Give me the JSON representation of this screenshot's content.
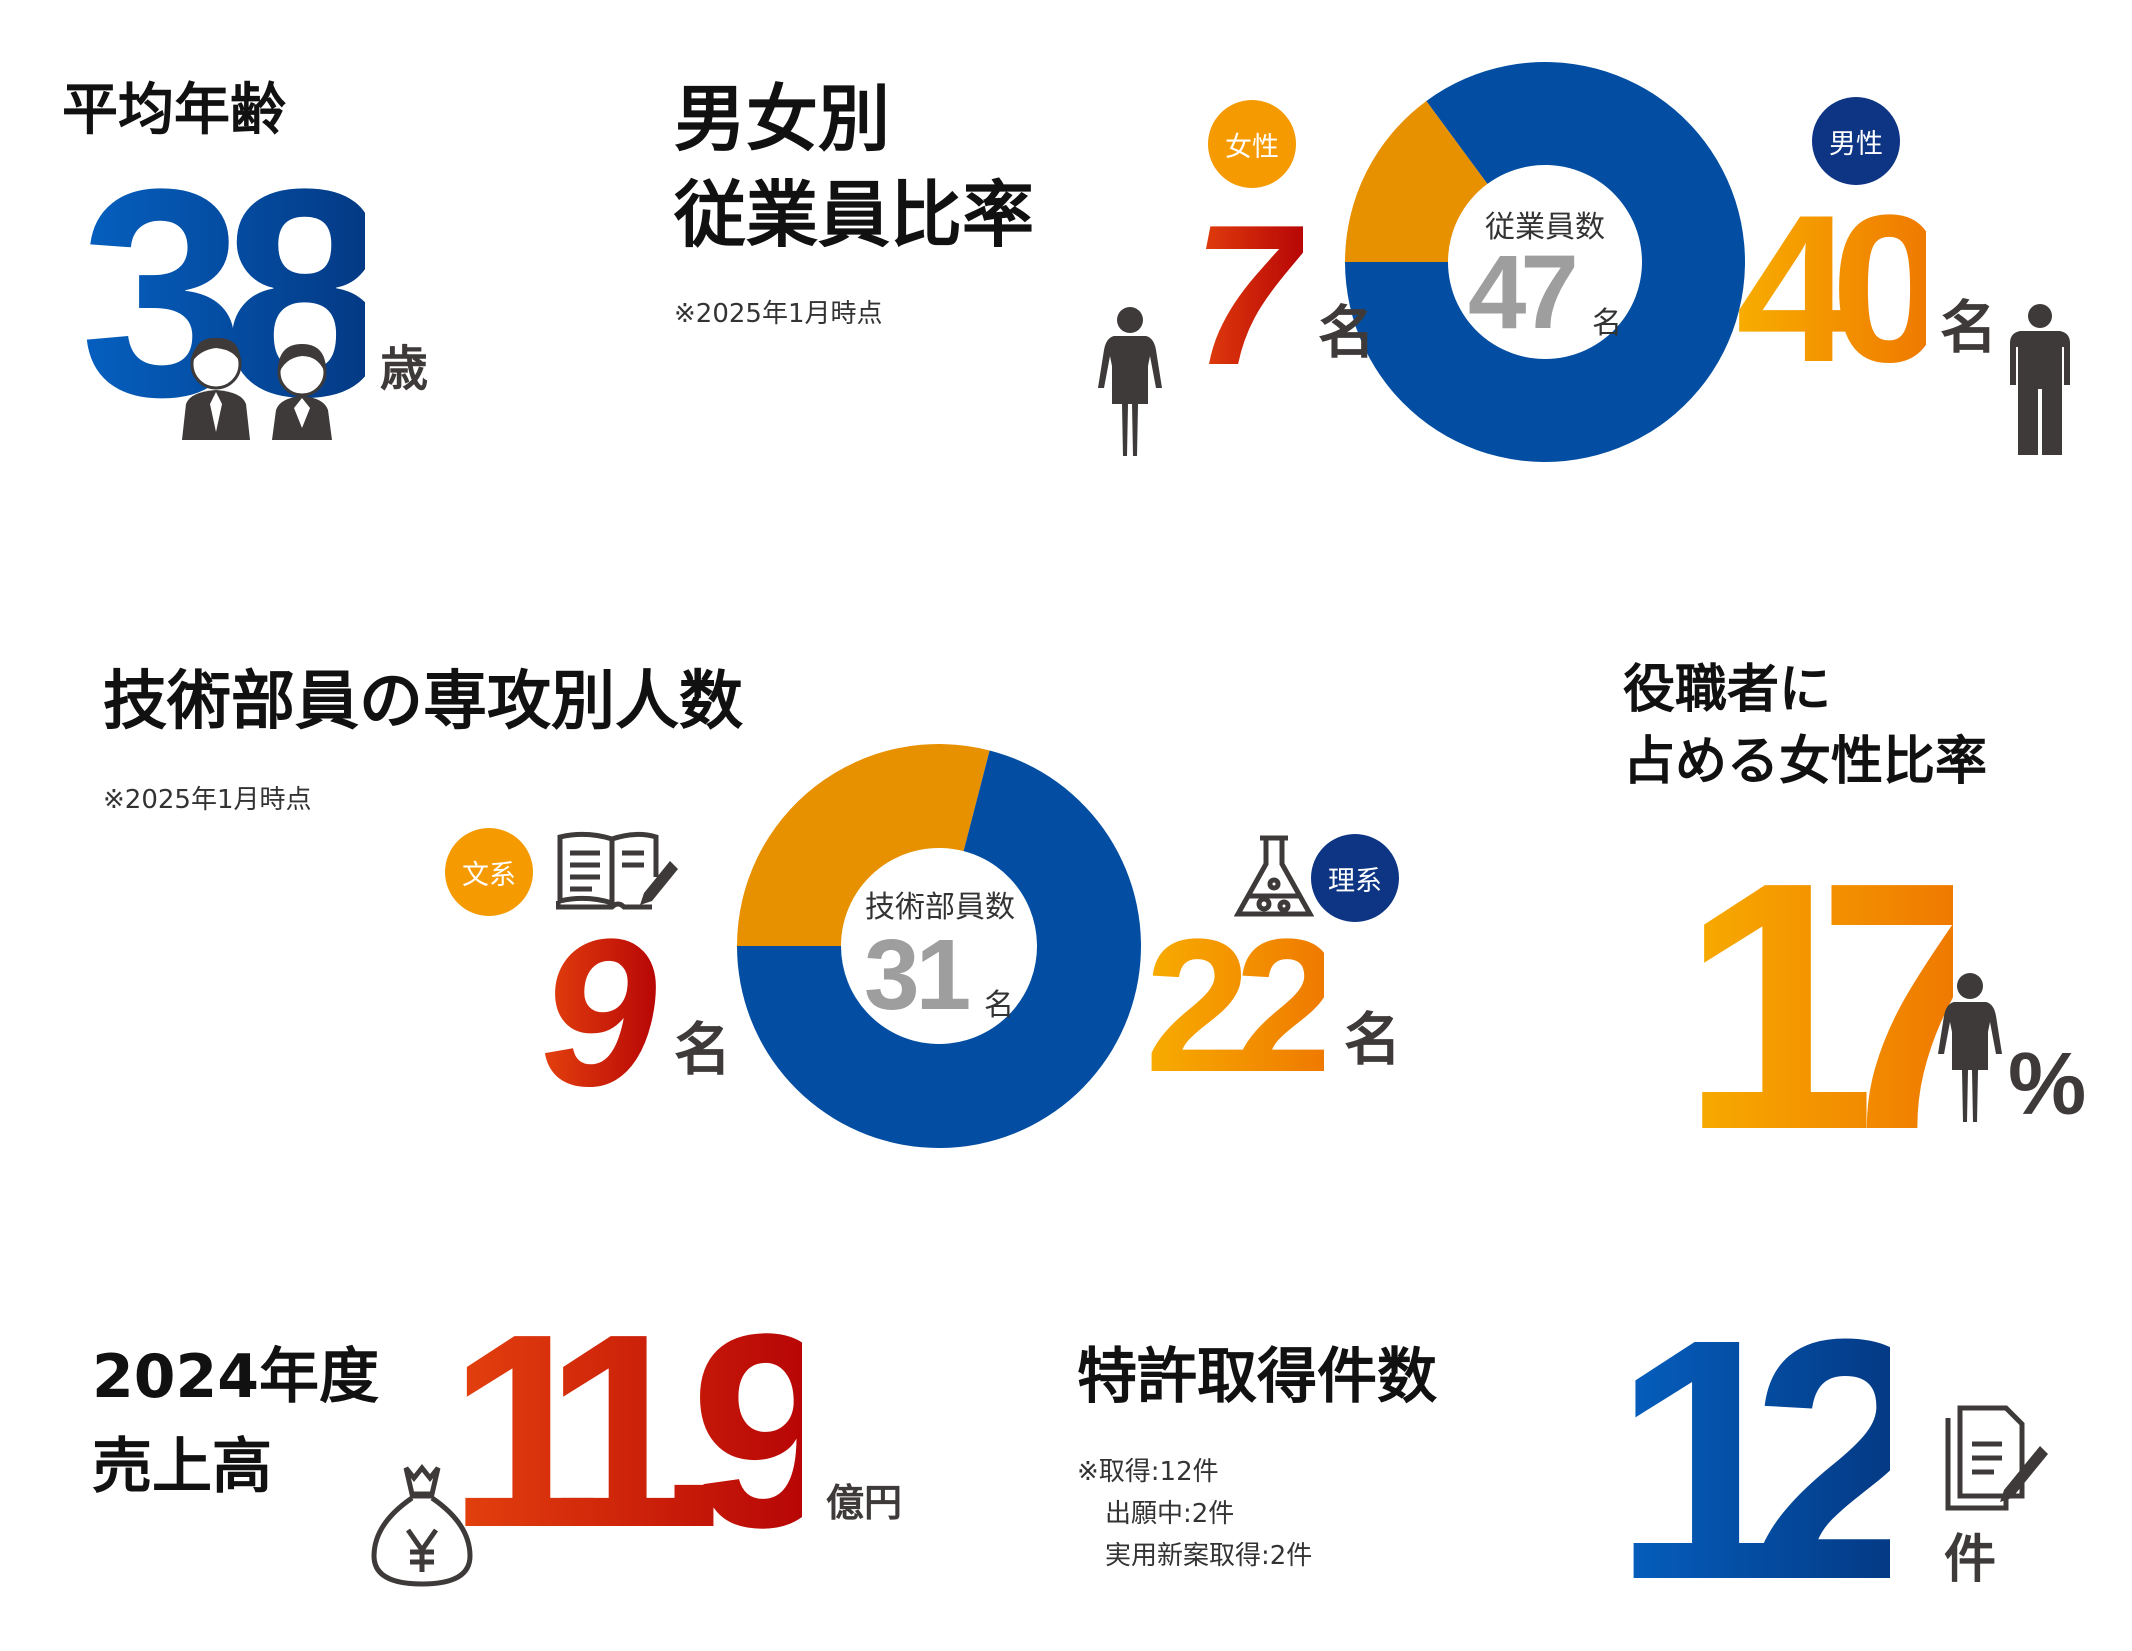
{
  "average_age": {
    "title": "平均年齢",
    "value": "38",
    "unit": "歳"
  },
  "gender_ratio": {
    "title_line1": "男女別",
    "title_line2": "従業員比率",
    "note": "※2025年1月時点",
    "total_label": "従業員数",
    "total_value": "47",
    "total_unit": "名",
    "female": {
      "label": "女性",
      "value": "7",
      "unit": "名"
    },
    "male": {
      "label": "男性",
      "value": "40",
      "unit": "名"
    }
  },
  "majors": {
    "title": "技術部員の専攻別人数",
    "note": "※2025年1月時点",
    "total_label": "技術部員数",
    "total_value": "31",
    "total_unit": "名",
    "humanities": {
      "label": "文系",
      "value": "9",
      "unit": "名"
    },
    "science": {
      "label": "理系",
      "value": "22",
      "unit": "名"
    }
  },
  "female_managers": {
    "title_line1": "役職者に",
    "title_line2": "占める女性比率",
    "value": "17",
    "unit": "%"
  },
  "sales": {
    "title_line1": "2024年度",
    "title_line2": "売上高",
    "value": "11.9",
    "unit": "億円"
  },
  "patents": {
    "title": "特許取得件数",
    "notes": [
      "※取得:12件",
      "出願中:2件",
      "実用新案取得:2件"
    ],
    "value": "12",
    "unit": "件"
  },
  "colors": {
    "blue": "#034ea2",
    "orange": "#e89100",
    "badge_orange": "#f59a00",
    "badge_navy": "#0d3583",
    "red": "#d0200c",
    "gray": "#9e9e9e",
    "icon": "#3d3a39"
  },
  "chart_data": [
    {
      "type": "pie",
      "donut": true,
      "categories": [
        "女性",
        "男性"
      ],
      "values": [
        7,
        40
      ],
      "colors": [
        "#e89100",
        "#034ea2"
      ]
    },
    {
      "type": "pie",
      "donut": true,
      "categories": [
        "文系",
        "理系"
      ],
      "values": [
        9,
        22
      ],
      "colors": [
        "#e89100",
        "#034ea2"
      ]
    }
  ]
}
